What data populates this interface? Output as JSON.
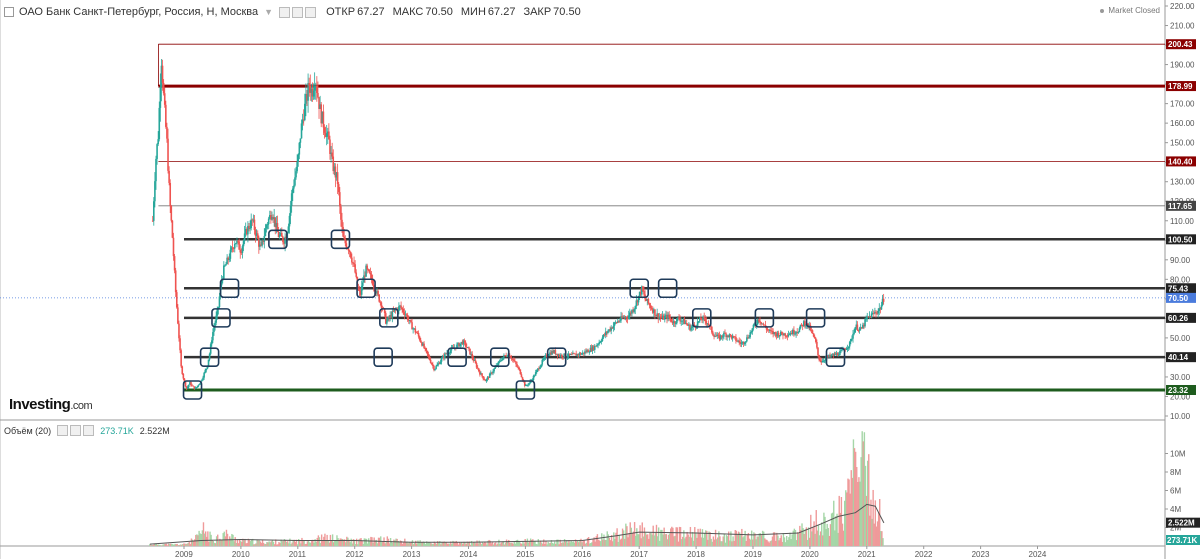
{
  "header": {
    "title": "ОАО Банк Санкт-Петербург, Россия, Н, Москва",
    "open_label": "ОТКР",
    "open_value": "67.27",
    "high_label": "МАКС",
    "high_value": "70.50",
    "low_label": "МИН",
    "low_value": "67.27",
    "close_label": "ЗАКР",
    "close_value": "70.50"
  },
  "market_status": "Market Closed",
  "logo": {
    "text": "Investing",
    "suffix": ".com"
  },
  "volume_header": {
    "label": "Объём (20)",
    "value": "273.71K",
    "ma_value": "2.522M"
  },
  "colors": {
    "up": "#26a69a",
    "down": "#ef5350",
    "level_dark": "#333333",
    "level_red": "#8b0000",
    "level_green": "#1e5c1e",
    "box": "#1f3b5a",
    "price_label": "#4a7bdc"
  },
  "chart_data": [
    {
      "type": "candlestick",
      "title": "ОАО Банк Санкт-Петербург, Россия, Н, Москва",
      "ylim": [
        10,
        220
      ],
      "y_ticks": [
        "220.00",
        "210.00",
        "200.00",
        "190.00",
        "180.00",
        "170.00",
        "160.00",
        "150.00",
        "140.00",
        "130.00",
        "120.00",
        "110.00",
        "100.00",
        "90.00",
        "80.00",
        "70.00",
        "60.00",
        "50.00",
        "40.00",
        "30.00",
        "20.00",
        "10.00"
      ],
      "x_ticks": [
        "2009",
        "2010",
        "2011",
        "2012",
        "2013",
        "2014",
        "2015",
        "2016",
        "2017",
        "2018",
        "2019",
        "2020",
        "2021",
        "2022",
        "2023",
        "2024"
      ],
      "xlim": [
        2008.0,
        2024.7
      ],
      "horizontal_levels": [
        {
          "value": 200.43,
          "label": "200.43",
          "style": "thin-red"
        },
        {
          "value": 178.99,
          "label": "178.99",
          "style": "thick-red"
        },
        {
          "value": 140.4,
          "label": "140.40",
          "style": "thin-red"
        },
        {
          "value": 117.65,
          "label": "117.65",
          "style": "thin-gray"
        },
        {
          "value": 100.5,
          "label": "100.50",
          "style": "thick-dark"
        },
        {
          "value": 75.43,
          "label": "75.43",
          "style": "thick-dark"
        },
        {
          "value": 60.26,
          "label": "60.26",
          "style": "thick-dark"
        },
        {
          "value": 40.14,
          "label": "40.14",
          "style": "thick-dark"
        },
        {
          "value": 23.32,
          "label": "23.32",
          "style": "thick-green"
        }
      ],
      "current_price": {
        "value": 70.5,
        "label": "70.50"
      },
      "price_path": [
        [
          2008.45,
          110
        ],
        [
          2008.5,
          140
        ],
        [
          2008.55,
          155
        ],
        [
          2008.6,
          195
        ],
        [
          2008.65,
          170
        ],
        [
          2008.7,
          150
        ],
        [
          2008.75,
          120
        ],
        [
          2008.8,
          100
        ],
        [
          2008.85,
          75
        ],
        [
          2008.9,
          55
        ],
        [
          2008.95,
          35
        ],
        [
          2009.0,
          28
        ],
        [
          2009.05,
          24
        ],
        [
          2009.1,
          27
        ],
        [
          2009.15,
          25
        ],
        [
          2009.2,
          24
        ],
        [
          2009.3,
          28
        ],
        [
          2009.4,
          35
        ],
        [
          2009.45,
          42
        ],
        [
          2009.5,
          52
        ],
        [
          2009.6,
          65
        ],
        [
          2009.65,
          78
        ],
        [
          2009.7,
          85
        ],
        [
          2009.8,
          92
        ],
        [
          2009.9,
          100
        ],
        [
          2010.0,
          95
        ],
        [
          2010.1,
          105
        ],
        [
          2010.2,
          110
        ],
        [
          2010.3,
          100
        ],
        [
          2010.35,
          95
        ],
        [
          2010.45,
          108
        ],
        [
          2010.55,
          115
        ],
        [
          2010.65,
          103
        ],
        [
          2010.75,
          100
        ],
        [
          2010.8,
          103
        ],
        [
          2010.85,
          112
        ],
        [
          2010.9,
          125
        ],
        [
          2011.0,
          140
        ],
        [
          2011.05,
          155
        ],
        [
          2011.1,
          165
        ],
        [
          2011.15,
          172
        ],
        [
          2011.2,
          180
        ],
        [
          2011.25,
          176
        ],
        [
          2011.3,
          184
        ],
        [
          2011.35,
          175
        ],
        [
          2011.4,
          165
        ],
        [
          2011.45,
          160
        ],
        [
          2011.5,
          155
        ],
        [
          2011.55,
          150
        ],
        [
          2011.6,
          140
        ],
        [
          2011.7,
          130
        ],
        [
          2011.75,
          112
        ],
        [
          2011.8,
          100
        ],
        [
          2011.9,
          96
        ],
        [
          2012.0,
          85
        ],
        [
          2012.05,
          75
        ],
        [
          2012.1,
          72
        ],
        [
          2012.15,
          80
        ],
        [
          2012.2,
          85
        ],
        [
          2012.3,
          80
        ],
        [
          2012.4,
          72
        ],
        [
          2012.5,
          65
        ],
        [
          2012.55,
          58
        ],
        [
          2012.6,
          60
        ],
        [
          2012.7,
          64
        ],
        [
          2012.8,
          66
        ],
        [
          2012.9,
          62
        ],
        [
          2013.0,
          56
        ],
        [
          2013.1,
          52
        ],
        [
          2013.2,
          46
        ],
        [
          2013.3,
          40
        ],
        [
          2013.4,
          34
        ],
        [
          2013.5,
          38
        ],
        [
          2013.6,
          42
        ],
        [
          2013.7,
          44
        ],
        [
          2013.8,
          46
        ],
        [
          2013.9,
          48
        ],
        [
          2014.0,
          44
        ],
        [
          2014.1,
          38
        ],
        [
          2014.2,
          32
        ],
        [
          2014.3,
          28
        ],
        [
          2014.4,
          32
        ],
        [
          2014.5,
          36
        ],
        [
          2014.6,
          40
        ],
        [
          2014.7,
          42
        ],
        [
          2014.8,
          38
        ],
        [
          2014.9,
          33
        ],
        [
          2015.0,
          25
        ],
        [
          2015.1,
          28
        ],
        [
          2015.2,
          33
        ],
        [
          2015.3,
          38
        ],
        [
          2015.4,
          42
        ],
        [
          2015.5,
          43
        ],
        [
          2015.6,
          41
        ],
        [
          2015.8,
          41
        ],
        [
          2016.0,
          42
        ],
        [
          2016.2,
          45
        ],
        [
          2016.3,
          48
        ],
        [
          2016.4,
          52
        ],
        [
          2016.5,
          55
        ],
        [
          2016.6,
          58
        ],
        [
          2016.7,
          60
        ],
        [
          2016.8,
          61
        ],
        [
          2016.9,
          65
        ],
        [
          2017.0,
          72
        ],
        [
          2017.05,
          75
        ],
        [
          2017.1,
          70
        ],
        [
          2017.2,
          66
        ],
        [
          2017.3,
          62
        ],
        [
          2017.4,
          60
        ],
        [
          2017.5,
          61
        ],
        [
          2017.6,
          58
        ],
        [
          2017.7,
          60
        ],
        [
          2017.8,
          58
        ],
        [
          2017.9,
          55
        ],
        [
          2018.0,
          57
        ],
        [
          2018.1,
          60
        ],
        [
          2018.2,
          58
        ],
        [
          2018.3,
          52
        ],
        [
          2018.4,
          50
        ],
        [
          2018.5,
          52
        ],
        [
          2018.6,
          51
        ],
        [
          2018.7,
          49
        ],
        [
          2018.8,
          47
        ],
        [
          2018.9,
          50
        ],
        [
          2019.0,
          55
        ],
        [
          2019.1,
          60
        ],
        [
          2019.2,
          56
        ],
        [
          2019.3,
          53
        ],
        [
          2019.4,
          52
        ],
        [
          2019.5,
          52
        ],
        [
          2019.6,
          52
        ],
        [
          2019.7,
          53
        ],
        [
          2019.8,
          54
        ],
        [
          2019.9,
          58
        ],
        [
          2020.0,
          55
        ],
        [
          2020.1,
          48
        ],
        [
          2020.15,
          40
        ],
        [
          2020.2,
          38
        ],
        [
          2020.3,
          40
        ],
        [
          2020.4,
          41
        ],
        [
          2020.5,
          42
        ],
        [
          2020.6,
          44
        ],
        [
          2020.7,
          47
        ],
        [
          2020.8,
          56
        ],
        [
          2020.9,
          54
        ],
        [
          2021.0,
          60
        ],
        [
          2021.1,
          62
        ],
        [
          2021.2,
          64
        ],
        [
          2021.25,
          66
        ],
        [
          2021.3,
          70.5
        ]
      ],
      "annotation_boxes_center_values": [
        [
          2009.15,
          23.32
        ],
        [
          2009.45,
          40.14
        ],
        [
          2009.65,
          60.26
        ],
        [
          2009.8,
          75.43
        ],
        [
          2010.65,
          100.5
        ],
        [
          2011.75,
          100.5
        ],
        [
          2012.2,
          75.43
        ],
        [
          2012.5,
          40.14
        ],
        [
          2012.6,
          60.26
        ],
        [
          2013.8,
          40.14
        ],
        [
          2014.55,
          40.14
        ],
        [
          2015.0,
          23.32
        ],
        [
          2015.55,
          40.14
        ],
        [
          2017.0,
          75.43
        ],
        [
          2017.5,
          75.43
        ],
        [
          2018.1,
          60.26
        ],
        [
          2019.2,
          60.26
        ],
        [
          2020.1,
          60.26
        ],
        [
          2020.45,
          40.14
        ]
      ]
    },
    {
      "type": "bar",
      "title": "Объём (20)",
      "ylim": [
        0,
        12
      ],
      "y_unit": "M",
      "y_ticks": [
        "10M",
        "8M",
        "6M",
        "4M",
        "2M"
      ],
      "current_value_label": "273.71K",
      "ma_value_label": "2.522M",
      "volume_profile": [
        [
          2008.4,
          0.2
        ],
        [
          2009.0,
          0.2
        ],
        [
          2009.2,
          0.8
        ],
        [
          2009.35,
          2.0
        ],
        [
          2009.5,
          0.8
        ],
        [
          2009.7,
          1.5
        ],
        [
          2010.0,
          0.6
        ],
        [
          2010.5,
          0.5
        ],
        [
          2011.0,
          0.6
        ],
        [
          2011.5,
          1.0
        ],
        [
          2011.8,
          0.8
        ],
        [
          2012.0,
          0.6
        ],
        [
          2012.5,
          0.8
        ],
        [
          2013.0,
          0.5
        ],
        [
          2013.5,
          0.4
        ],
        [
          2014.0,
          0.4
        ],
        [
          2014.5,
          0.5
        ],
        [
          2015.0,
          0.6
        ],
        [
          2015.5,
          0.5
        ],
        [
          2016.0,
          0.6
        ],
        [
          2016.3,
          1.0
        ],
        [
          2016.5,
          1.2
        ],
        [
          2016.8,
          1.8
        ],
        [
          2017.0,
          2.0
        ],
        [
          2017.5,
          1.5
        ],
        [
          2018.0,
          1.5
        ],
        [
          2018.5,
          1.2
        ],
        [
          2019.0,
          1.4
        ],
        [
          2019.5,
          1.0
        ],
        [
          2019.8,
          1.5
        ],
        [
          2020.1,
          2.8
        ],
        [
          2020.3,
          3.0
        ],
        [
          2020.5,
          4.0
        ],
        [
          2020.6,
          5.5
        ],
        [
          2020.75,
          8.0
        ],
        [
          2020.85,
          11.0
        ],
        [
          2020.95,
          9.0
        ],
        [
          2021.05,
          7.0
        ],
        [
          2021.15,
          5.5
        ],
        [
          2021.25,
          3.5
        ],
        [
          2021.3,
          0.27
        ]
      ],
      "ma_profile": [
        [
          2008.4,
          0.2
        ],
        [
          2009.3,
          0.6
        ],
        [
          2010.0,
          0.7
        ],
        [
          2011.0,
          0.6
        ],
        [
          2012.0,
          0.6
        ],
        [
          2013.0,
          0.4
        ],
        [
          2014.0,
          0.4
        ],
        [
          2015.0,
          0.5
        ],
        [
          2016.0,
          0.6
        ],
        [
          2016.6,
          1.1
        ],
        [
          2017.0,
          1.5
        ],
        [
          2018.0,
          1.4
        ],
        [
          2019.0,
          1.2
        ],
        [
          2019.8,
          1.4
        ],
        [
          2020.2,
          2.4
        ],
        [
          2020.5,
          3.2
        ],
        [
          2020.8,
          3.6
        ],
        [
          2021.0,
          4.5
        ],
        [
          2021.15,
          4.3
        ],
        [
          2021.3,
          2.5
        ]
      ]
    }
  ]
}
